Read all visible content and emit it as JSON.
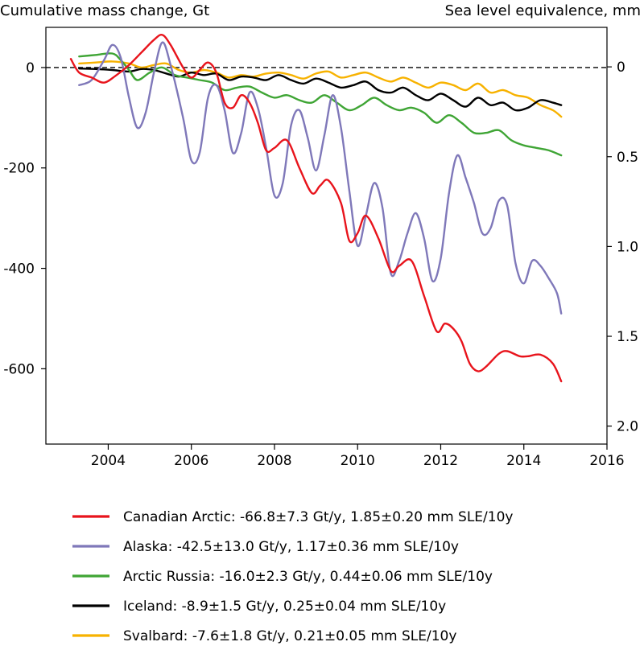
{
  "chart_data": {
    "type": "line",
    "title": "",
    "ylabel": "Cumulative mass change, Gt",
    "y2label": "Sea level equivalence, mm",
    "xlabel": "",
    "xlim": [
      2002.5,
      2016
    ],
    "ylim": [
      -750,
      80
    ],
    "y2lim": [
      2.1,
      -0.22
    ],
    "xticks": [
      2004,
      2006,
      2008,
      2010,
      2012,
      2014,
      2016
    ],
    "yticks": [
      0,
      -200,
      -400,
      -600
    ],
    "ytick_labels": [
      "0",
      "-200",
      "-400",
      "-600"
    ],
    "y2ticks": [
      0,
      0.5,
      1.0,
      1.5,
      2.0
    ],
    "y2tick_labels": [
      "0",
      "0.5",
      "1.0",
      "1.5",
      "2.0"
    ],
    "zero_line": "dashed",
    "grid": false,
    "legend_position": "below",
    "series": [
      {
        "name": "Canadian Arctic",
        "legend_label": "Canadian Arctic: -66.8±7.3 Gt/y, 1.85±0.20 mm SLE/10y",
        "color": "#e8141c",
        "x": [
          2003.1,
          2003.3,
          2003.6,
          2003.9,
          2004.2,
          2004.5,
          2004.8,
          2005.1,
          2005.3,
          2005.5,
          2005.8,
          2006.0,
          2006.2,
          2006.4,
          2006.6,
          2006.8,
          2007.0,
          2007.2,
          2007.4,
          2007.6,
          2007.8,
          2008.0,
          2008.3,
          2008.6,
          2008.9,
          2009.1,
          2009.3,
          2009.6,
          2009.8,
          2010.0,
          2010.2,
          2010.5,
          2010.8,
          2011.0,
          2011.3,
          2011.6,
          2011.9,
          2012.1,
          2012.3,
          2012.5,
          2012.7,
          2012.9,
          2013.1,
          2013.4,
          2013.6,
          2013.9,
          2014.1,
          2014.4,
          2014.7,
          2014.9
        ],
        "y": [
          17,
          -10,
          -20,
          -30,
          -15,
          5,
          30,
          55,
          65,
          45,
          0,
          -20,
          -5,
          10,
          -10,
          -70,
          -80,
          -55,
          -70,
          -110,
          -165,
          -160,
          -145,
          -200,
          -250,
          -235,
          -225,
          -270,
          -345,
          -330,
          -295,
          -340,
          -405,
          -395,
          -385,
          -455,
          -525,
          -510,
          -520,
          -545,
          -590,
          -605,
          -595,
          -570,
          -565,
          -575,
          -575,
          -572,
          -590,
          -625
        ]
      },
      {
        "name": "Alaska",
        "legend_label": "Alaska: -42.5±13.0 Gt/y, 1.17±0.36 mm SLE/10y",
        "color": "#7f78b9",
        "x": [
          2003.3,
          2003.6,
          2003.9,
          2004.1,
          2004.3,
          2004.5,
          2004.7,
          2004.9,
          2005.1,
          2005.3,
          2005.5,
          2005.8,
          2006.0,
          2006.2,
          2006.4,
          2006.6,
          2006.8,
          2007.0,
          2007.2,
          2007.4,
          2007.6,
          2007.8,
          2008.0,
          2008.2,
          2008.4,
          2008.6,
          2008.8,
          2009.0,
          2009.2,
          2009.4,
          2009.6,
          2009.8,
          2010.0,
          2010.2,
          2010.4,
          2010.6,
          2010.8,
          2011.0,
          2011.2,
          2011.4,
          2011.6,
          2011.8,
          2012.0,
          2012.2,
          2012.4,
          2012.6,
          2012.8,
          2013.0,
          2013.2,
          2013.4,
          2013.6,
          2013.8,
          2014.0,
          2014.2,
          2014.4,
          2014.6,
          2014.8,
          2014.9
        ],
        "y": [
          -35,
          -25,
          15,
          45,
          20,
          -60,
          -120,
          -90,
          -10,
          50,
          5,
          -100,
          -185,
          -170,
          -60,
          -35,
          -85,
          -170,
          -130,
          -50,
          -80,
          -160,
          -255,
          -230,
          -115,
          -85,
          -140,
          -205,
          -135,
          -55,
          -120,
          -245,
          -355,
          -295,
          -230,
          -280,
          -410,
          -385,
          -330,
          -290,
          -340,
          -425,
          -380,
          -250,
          -175,
          -220,
          -270,
          -330,
          -320,
          -265,
          -275,
          -390,
          -430,
          -385,
          -395,
          -420,
          -450,
          -490
        ]
      },
      {
        "name": "Arctic Russia",
        "legend_label": "Arctic Russia: -16.0±2.3 Gt/y, 0.44±0.06 mm SLE/10y",
        "color": "#3fa535",
        "x": [
          2003.3,
          2003.7,
          2004.1,
          2004.3,
          2004.5,
          2004.7,
          2005.0,
          2005.3,
          2005.6,
          2005.9,
          2006.2,
          2006.5,
          2006.8,
          2007.1,
          2007.4,
          2007.7,
          2008.0,
          2008.3,
          2008.6,
          2008.9,
          2009.2,
          2009.5,
          2009.8,
          2010.1,
          2010.4,
          2010.7,
          2011.0,
          2011.3,
          2011.6,
          2011.9,
          2012.2,
          2012.5,
          2012.8,
          2013.1,
          2013.4,
          2013.7,
          2014.0,
          2014.3,
          2014.6,
          2014.9
        ],
        "y": [
          22,
          25,
          28,
          15,
          -5,
          -25,
          -10,
          0,
          -15,
          -20,
          -25,
          -30,
          -45,
          -40,
          -38,
          -50,
          -60,
          -55,
          -65,
          -70,
          -55,
          -70,
          -85,
          -75,
          -60,
          -75,
          -85,
          -80,
          -90,
          -110,
          -95,
          -110,
          -130,
          -130,
          -125,
          -145,
          -155,
          -160,
          -165,
          -175
        ]
      },
      {
        "name": "Iceland",
        "legend_label": "Iceland: -8.9±1.5 Gt/y, 0.25±0.04 mm SLE/10y",
        "color": "#000000",
        "x": [
          2003.3,
          2003.7,
          2004.1,
          2004.5,
          2004.8,
          2005.1,
          2005.4,
          2005.7,
          2006.0,
          2006.3,
          2006.6,
          2006.9,
          2007.2,
          2007.5,
          2007.8,
          2008.1,
          2008.4,
          2008.7,
          2009.0,
          2009.3,
          2009.6,
          2009.9,
          2010.2,
          2010.5,
          2010.8,
          2011.1,
          2011.4,
          2011.7,
          2012.0,
          2012.3,
          2012.6,
          2012.9,
          2013.2,
          2013.5,
          2013.8,
          2014.1,
          2014.4,
          2014.7,
          2014.9
        ],
        "y": [
          -2,
          -3,
          -5,
          -8,
          -3,
          -5,
          -12,
          -18,
          -10,
          -15,
          -12,
          -25,
          -18,
          -20,
          -25,
          -15,
          -25,
          -32,
          -22,
          -30,
          -40,
          -35,
          -28,
          -45,
          -50,
          -40,
          -55,
          -65,
          -52,
          -65,
          -78,
          -60,
          -75,
          -70,
          -85,
          -80,
          -65,
          -70,
          -75
        ]
      },
      {
        "name": "Svalbard",
        "legend_label": "Svalbard: -7.6±1.8 Gt/y, 0.21±0.05 mm SLE/10y",
        "color": "#f7b200",
        "x": [
          2003.3,
          2003.7,
          2004.1,
          2004.5,
          2004.8,
          2005.1,
          2005.4,
          2005.7,
          2006.0,
          2006.3,
          2006.6,
          2006.9,
          2007.2,
          2007.5,
          2007.8,
          2008.1,
          2008.4,
          2008.7,
          2009.0,
          2009.3,
          2009.6,
          2009.9,
          2010.2,
          2010.5,
          2010.8,
          2011.1,
          2011.4,
          2011.7,
          2012.0,
          2012.3,
          2012.6,
          2012.9,
          2013.2,
          2013.5,
          2013.8,
          2014.1,
          2014.4,
          2014.7,
          2014.9
        ],
        "y": [
          8,
          10,
          12,
          8,
          0,
          5,
          8,
          -5,
          -10,
          -5,
          -10,
          -20,
          -15,
          -18,
          -12,
          -10,
          -15,
          -22,
          -12,
          -8,
          -20,
          -15,
          -10,
          -20,
          -28,
          -20,
          -30,
          -40,
          -30,
          -35,
          -45,
          -32,
          -50,
          -45,
          -55,
          -60,
          -75,
          -85,
          -98
        ]
      }
    ]
  }
}
